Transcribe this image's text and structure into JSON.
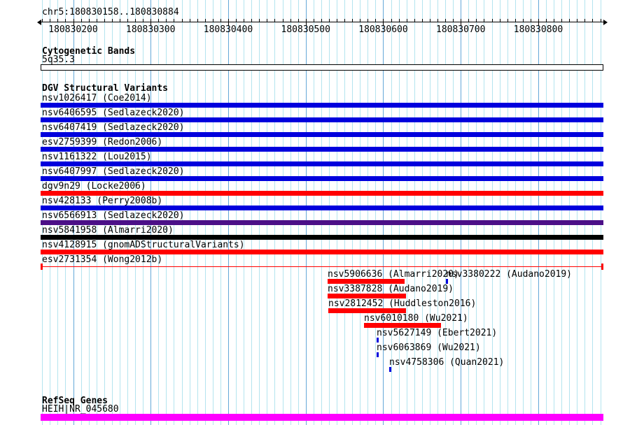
{
  "region": {
    "title": "chr5:180830158..180830884",
    "chromosome": "chr5",
    "start": 180830158,
    "end": 180830884
  },
  "ruler": {
    "tick_labels": [
      "180830200",
      "180830300",
      "180830400",
      "180830500",
      "180830600",
      "180830700",
      "180830800"
    ],
    "minor_step": 10,
    "major_step": 100
  },
  "colors": {
    "blue": "#0000dd",
    "red": "#ff0000",
    "purple": "#4b0f87",
    "black": "#000000",
    "magenta": "#ff00ff",
    "grid": "#b4e4ef",
    "grid_major": "#64a8d8"
  },
  "sections": {
    "cytobands": {
      "header": "Cytogenetic Bands",
      "band": "5q35.3"
    },
    "dgv": {
      "header": "DGV Structural Variants"
    },
    "refseq": {
      "header": "RefSeq Genes",
      "gene_label": "HEIH|NR_045680"
    }
  },
  "tracks": [
    {
      "label": "nsv1026417 (Coe2014)",
      "color": "blue",
      "glyph": "box",
      "row": 0,
      "full_width": true
    },
    {
      "label": "nsv6406595 (Sedlazeck2020)",
      "color": "blue",
      "glyph": "box",
      "row": 1,
      "full_width": true
    },
    {
      "label": "nsv6407419 (Sedlazeck2020)",
      "color": "blue",
      "glyph": "box",
      "row": 2,
      "full_width": true
    },
    {
      "label": "esv2759399 (Redon2006)",
      "color": "blue",
      "glyph": "box",
      "row": 3,
      "full_width": true
    },
    {
      "label": "nsv1161322 (Lou2015)",
      "color": "blue",
      "glyph": "box",
      "row": 4,
      "full_width": true
    },
    {
      "label": "nsv6407997 (Sedlazeck2020)",
      "color": "blue",
      "glyph": "box",
      "row": 5,
      "full_width": true
    },
    {
      "label": "dgv9n29 (Locke2006)",
      "color": "red",
      "glyph": "box",
      "row": 6,
      "full_width": true
    },
    {
      "label": "nsv428133 (Perry2008b)",
      "color": "blue",
      "glyph": "box",
      "row": 7,
      "full_width": true
    },
    {
      "label": "nsv6566913 (Sedlazeck2020)",
      "color": "purple",
      "glyph": "box",
      "row": 8,
      "full_width": true
    },
    {
      "label": "nsv5841958 (Almarri2020)",
      "color": "black",
      "glyph": "box",
      "row": 9,
      "full_width": true
    },
    {
      "label": "nsv4128915 (gnomADStructuralVariants)",
      "color": "red",
      "glyph": "box",
      "row": 10,
      "full_width": true
    },
    {
      "label": "esv2731354 (Wong2012b)",
      "color": "red",
      "glyph": "span",
      "row": 11,
      "full_width": true
    },
    {
      "label": "nsv5906636 (Almarri2020)",
      "color": "red",
      "glyph": "box",
      "row": 12,
      "start": 180830528,
      "end": 180830627
    },
    {
      "label": "nsv3380222 (Audano2019)",
      "color": "blue",
      "glyph": "tick",
      "row": 12,
      "start": 180830681,
      "end": 180830683
    },
    {
      "label": "nsv3387828 (Audano2019)",
      "color": "red",
      "glyph": "box",
      "row": 13,
      "start": 180830528,
      "end": 180830629
    },
    {
      "label": "nsv2812452 (Huddleston2016)",
      "color": "red",
      "glyph": "box",
      "row": 14,
      "start": 180830529,
      "end": 180830629
    },
    {
      "label": "nsv6010180 (Wu2021)",
      "color": "red",
      "glyph": "box",
      "row": 15,
      "start": 180830575,
      "end": 180830674
    },
    {
      "label": "nsv5627149 (Ebert2021)",
      "color": "blue",
      "glyph": "tick",
      "row": 16,
      "start": 180830591,
      "end": 180830593
    },
    {
      "label": "nsv6063869 (Wu2021)",
      "color": "blue",
      "glyph": "tick",
      "row": 17,
      "start": 180830591,
      "end": 180830593
    },
    {
      "label": "nsv4758306 (Quan2021)",
      "color": "blue",
      "glyph": "tick",
      "row": 18,
      "start": 180830608,
      "end": 180830610
    }
  ]
}
